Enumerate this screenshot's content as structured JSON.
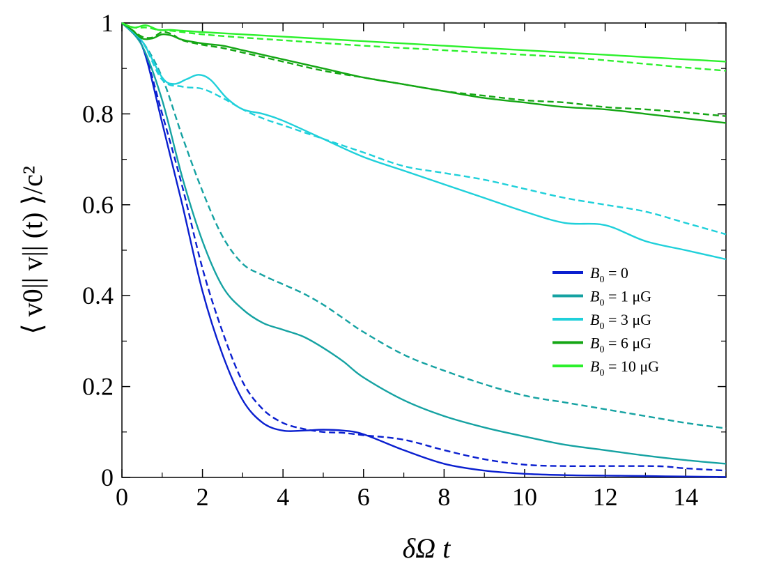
{
  "chart_data": {
    "type": "line",
    "xlabel": "δΩ t",
    "ylabel": "⟨ v0|| v|| (t) ⟩/c²",
    "xlim": [
      0,
      15
    ],
    "ylim": [
      0,
      1
    ],
    "xticks": [
      0,
      2,
      4,
      6,
      8,
      10,
      12,
      14
    ],
    "xtick_labels": [
      "0",
      "2",
      "4",
      "6",
      "8",
      "10",
      "12",
      "14"
    ],
    "yticks": [
      0,
      0.2,
      0.4,
      0.6,
      0.8,
      1
    ],
    "ytick_labels": [
      "0",
      "0.2",
      "0.4",
      "0.6",
      "0.8",
      "1"
    ],
    "grid": false,
    "legend_position": "center-right",
    "legend": [
      {
        "label": "B",
        "sub": "0",
        "rest": " = 0",
        "color": "#0a1fcf"
      },
      {
        "label": "B",
        "sub": "0",
        "rest": " = 1 μG",
        "color": "#15a2a2"
      },
      {
        "label": "B",
        "sub": "0",
        "rest": " = 3 μG",
        "color": "#1fd0da"
      },
      {
        "label": "B",
        "sub": "0",
        "rest": " = 6 μG",
        "color": "#14a614"
      },
      {
        "label": "B",
        "sub": "0",
        "rest": " = 10 μG",
        "color": "#2cf02c"
      }
    ],
    "series": [
      {
        "legend_index": 0,
        "style": "solid",
        "color": "#0a1fcf",
        "x": [
          0,
          0.5,
          1,
          1.5,
          2,
          2.5,
          3,
          3.5,
          4,
          4.5,
          5,
          5.5,
          6,
          7,
          8,
          9,
          10,
          11,
          12,
          13,
          14,
          15
        ],
        "y": [
          1,
          0.95,
          0.78,
          0.6,
          0.41,
          0.27,
          0.17,
          0.12,
          0.103,
          0.103,
          0.105,
          0.103,
          0.095,
          0.06,
          0.03,
          0.015,
          0.008,
          0.005,
          0.004,
          0.003,
          0.002,
          0.001
        ]
      },
      {
        "legend_index": 0,
        "style": "dashed",
        "color": "#0a1fcf",
        "x": [
          0,
          0.5,
          1,
          1.5,
          2,
          2.5,
          3,
          3.5,
          4,
          4.5,
          5,
          5.5,
          6,
          7,
          8,
          9,
          10,
          11,
          12,
          13,
          13.5,
          14,
          15
        ],
        "y": [
          1,
          0.95,
          0.8,
          0.64,
          0.46,
          0.32,
          0.21,
          0.15,
          0.12,
          0.107,
          0.1,
          0.098,
          0.093,
          0.083,
          0.06,
          0.04,
          0.028,
          0.025,
          0.025,
          0.025,
          0.024,
          0.02,
          0.015
        ]
      },
      {
        "legend_index": 1,
        "style": "solid",
        "color": "#15a2a2",
        "x": [
          0,
          0.5,
          1,
          1.5,
          2,
          2.5,
          3,
          3.5,
          4,
          4.5,
          5,
          5.5,
          6,
          7,
          8,
          9,
          10,
          11,
          12,
          13,
          14,
          15
        ],
        "y": [
          1,
          0.95,
          0.83,
          0.66,
          0.52,
          0.42,
          0.37,
          0.34,
          0.325,
          0.31,
          0.285,
          0.255,
          0.22,
          0.17,
          0.135,
          0.11,
          0.09,
          0.072,
          0.06,
          0.048,
          0.038,
          0.03
        ]
      },
      {
        "legend_index": 1,
        "style": "dashed",
        "color": "#15a2a2",
        "x": [
          0,
          0.5,
          1,
          1.5,
          2,
          2.5,
          3,
          3.5,
          4,
          4.5,
          5,
          5.5,
          6,
          7,
          8,
          9,
          10,
          11,
          12,
          13,
          14,
          15
        ],
        "y": [
          1,
          0.96,
          0.88,
          0.75,
          0.63,
          0.53,
          0.47,
          0.445,
          0.425,
          0.405,
          0.38,
          0.35,
          0.32,
          0.27,
          0.235,
          0.205,
          0.18,
          0.165,
          0.15,
          0.135,
          0.12,
          0.108
        ]
      },
      {
        "legend_index": 2,
        "style": "solid",
        "color": "#1fd0da",
        "x": [
          0,
          0.5,
          1,
          1.3,
          1.6,
          1.9,
          2.2,
          2.6,
          3,
          3.5,
          4,
          5,
          6,
          7,
          8,
          9,
          10,
          11,
          12,
          13,
          14,
          15
        ],
        "y": [
          1,
          0.96,
          0.88,
          0.866,
          0.876,
          0.886,
          0.875,
          0.835,
          0.81,
          0.8,
          0.785,
          0.745,
          0.705,
          0.675,
          0.645,
          0.615,
          0.585,
          0.56,
          0.555,
          0.52,
          0.5,
          0.48
        ]
      },
      {
        "legend_index": 2,
        "style": "dashed",
        "color": "#1fd0da",
        "x": [
          0,
          0.5,
          1,
          1.5,
          2,
          2.5,
          3,
          3.5,
          4,
          5,
          6,
          7,
          8,
          9,
          10,
          11,
          12,
          13,
          14,
          15
        ],
        "y": [
          1,
          0.96,
          0.875,
          0.86,
          0.855,
          0.835,
          0.81,
          0.79,
          0.775,
          0.745,
          0.715,
          0.685,
          0.67,
          0.655,
          0.635,
          0.615,
          0.6,
          0.585,
          0.56,
          0.535
        ]
      },
      {
        "legend_index": 3,
        "style": "solid",
        "color": "#14a614",
        "x": [
          0,
          0.25,
          0.5,
          0.75,
          1,
          1.25,
          1.5,
          2,
          2.5,
          3,
          4,
          5,
          6,
          7,
          8,
          9,
          10,
          11,
          12,
          13,
          14,
          15
        ],
        "y": [
          1,
          0.985,
          0.966,
          0.966,
          0.975,
          0.972,
          0.963,
          0.955,
          0.95,
          0.94,
          0.92,
          0.9,
          0.88,
          0.865,
          0.85,
          0.835,
          0.825,
          0.815,
          0.81,
          0.8,
          0.79,
          0.78
        ]
      },
      {
        "legend_index": 3,
        "style": "dashed",
        "color": "#14a614",
        "x": [
          0,
          0.25,
          0.5,
          0.75,
          1,
          1.25,
          1.5,
          2,
          2.5,
          3,
          4,
          5,
          6,
          7,
          8,
          9,
          10,
          11,
          12,
          13,
          14,
          15
        ],
        "y": [
          1,
          0.985,
          0.97,
          0.968,
          0.98,
          0.975,
          0.962,
          0.952,
          0.945,
          0.935,
          0.915,
          0.895,
          0.88,
          0.865,
          0.85,
          0.84,
          0.83,
          0.825,
          0.815,
          0.81,
          0.803,
          0.795
        ]
      },
      {
        "legend_index": 4,
        "style": "solid",
        "color": "#2cf02c",
        "x": [
          0,
          0.3,
          0.6,
          0.9,
          1.2,
          1.5,
          2,
          3,
          4,
          5,
          6,
          7,
          8,
          9,
          10,
          11,
          12,
          13,
          14,
          15
        ],
        "y": [
          1,
          0.99,
          0.995,
          0.985,
          0.985,
          0.983,
          0.98,
          0.975,
          0.97,
          0.965,
          0.96,
          0.955,
          0.95,
          0.945,
          0.94,
          0.935,
          0.93,
          0.925,
          0.92,
          0.915
        ]
      },
      {
        "legend_index": 4,
        "style": "dashed",
        "color": "#2cf02c",
        "x": [
          0,
          0.3,
          0.6,
          0.9,
          1.2,
          1.5,
          2,
          3,
          4,
          5,
          6,
          7,
          8,
          9,
          10,
          11,
          12,
          13,
          14,
          15
        ],
        "y": [
          1,
          0.99,
          0.99,
          0.985,
          0.983,
          0.98,
          0.975,
          0.968,
          0.962,
          0.956,
          0.95,
          0.945,
          0.94,
          0.935,
          0.93,
          0.925,
          0.918,
          0.91,
          0.902,
          0.895
        ]
      }
    ]
  }
}
